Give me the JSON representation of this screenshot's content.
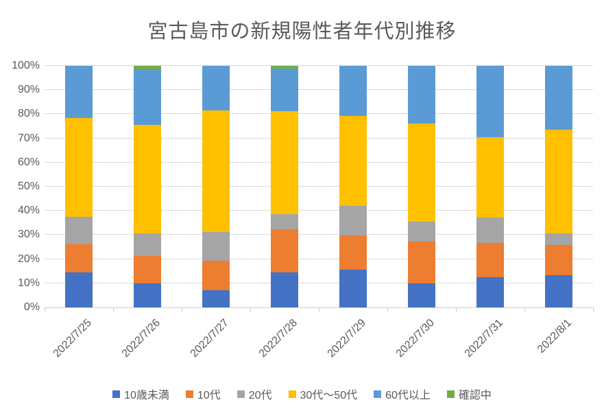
{
  "chart_data": {
    "type": "bar",
    "subtype": "stacked-100-percent-column",
    "title": "宮古島市の新規陽性者年代別推移",
    "categories": [
      "2022/7/25",
      "2022/7/26",
      "2022/7/27",
      "2022/7/28",
      "2022/7/29",
      "2022/7/30",
      "2022/7/31",
      "2022/8/1"
    ],
    "series": [
      {
        "name": "10歳未満",
        "color": "#4472C4",
        "values": [
          14.4,
          9.9,
          7.0,
          14.6,
          15.5,
          10.0,
          12.4,
          13.4
        ]
      },
      {
        "name": "10代",
        "color": "#ED7D31",
        "values": [
          11.7,
          11.3,
          12.3,
          17.7,
          14.2,
          17.4,
          14.2,
          12.5
        ]
      },
      {
        "name": "20代",
        "color": "#A5A5A5",
        "values": [
          11.4,
          9.5,
          11.9,
          6.4,
          12.3,
          8.2,
          10.5,
          4.8
        ]
      },
      {
        "name": "30代～50代",
        "color": "#FFC000",
        "values": [
          41.0,
          45.0,
          50.3,
          42.5,
          37.3,
          40.5,
          33.3,
          42.8
        ]
      },
      {
        "name": "60代以上",
        "color": "#5B9BD5",
        "values": [
          21.5,
          22.6,
          18.5,
          17.8,
          20.7,
          23.9,
          29.6,
          26.5
        ]
      },
      {
        "name": "確認中",
        "color": "#70AD47",
        "values": [
          0,
          1.7,
          0,
          1.0,
          0,
          0,
          0,
          0
        ]
      }
    ],
    "y_ticks": [
      "0%",
      "10%",
      "20%",
      "30%",
      "40%",
      "50%",
      "60%",
      "70%",
      "80%",
      "90%",
      "100%"
    ],
    "ylim": [
      0,
      100
    ],
    "xlabel": "",
    "ylabel": "",
    "grid": true,
    "gridline_color": "#D9D9D9",
    "legend_position": "bottom",
    "text_color": "#595959",
    "background_color": "#FFFFFF"
  }
}
